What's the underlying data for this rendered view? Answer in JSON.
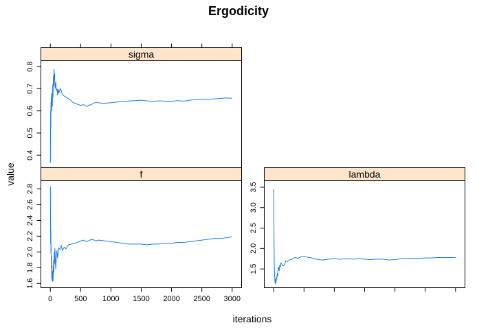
{
  "chart_data": {
    "type": "line",
    "title": "Ergodicity",
    "xlabel": "iterations",
    "ylabel": "value",
    "layout": "trellis 2x2, bottom-left start",
    "line_color": "#1f78e6",
    "strip_color": "#ffe5cc",
    "panels": [
      {
        "name": "sigma",
        "xlim": [
          -150,
          3150
        ],
        "ylim": [
          0.345,
          0.825
        ],
        "yticks": [
          "0.4",
          "0.5",
          "0.6",
          "0.7",
          "0.8"
        ],
        "ytick_values": [
          0.4,
          0.5,
          0.6,
          0.7,
          0.8
        ],
        "series": [
          {
            "x": [
              1,
              3,
              5,
              8,
              10,
              12,
              15,
              18,
              20,
              23,
              26,
              30,
              33,
              36,
              40,
              44,
              48,
              52,
              56,
              60,
              65,
              70,
              75,
              80,
              90,
              100,
              110,
              120,
              130,
              140,
              150,
              170,
              190,
              210,
              240,
              270,
              300,
              330,
              360,
              400,
              450,
              500,
              550,
              600,
              650,
              700,
              750,
              800,
              900,
              1000,
              1100,
              1200,
              1300,
              1400,
              1500,
              1600,
              1700,
              1800,
              1900,
              2000,
              2100,
              2200,
              2300,
              2400,
              2500,
              2600,
              2700,
              2800,
              2900,
              3000
            ],
            "y": [
              0.365,
              0.48,
              0.6,
              0.52,
              0.64,
              0.59,
              0.68,
              0.62,
              0.66,
              0.6,
              0.63,
              0.66,
              0.62,
              0.68,
              0.72,
              0.66,
              0.73,
              0.76,
              0.71,
              0.79,
              0.74,
              0.77,
              0.72,
              0.7,
              0.73,
              0.69,
              0.7,
              0.67,
              0.7,
              0.68,
              0.69,
              0.7,
              0.68,
              0.67,
              0.665,
              0.66,
              0.655,
              0.65,
              0.64,
              0.635,
              0.63,
              0.625,
              0.628,
              0.62,
              0.626,
              0.632,
              0.64,
              0.636,
              0.634,
              0.637,
              0.64,
              0.642,
              0.645,
              0.646,
              0.648,
              0.645,
              0.643,
              0.645,
              0.644,
              0.643,
              0.646,
              0.644,
              0.648,
              0.651,
              0.653,
              0.652,
              0.654,
              0.656,
              0.658,
              0.657
            ]
          }
        ]
      },
      {
        "name": "f",
        "xlim": [
          -150,
          3150
        ],
        "ylim": [
          1.55,
          2.9
        ],
        "xticks": [
          "0",
          "500",
          "1000",
          "1500",
          "2000",
          "2500",
          "3000"
        ],
        "xtick_values": [
          0,
          500,
          1000,
          1500,
          2000,
          2500,
          3000
        ],
        "yticks": [
          "1.6",
          "1.8",
          "2.0",
          "2.2",
          "2.4",
          "2.6",
          "2.8"
        ],
        "ytick_values": [
          1.6,
          1.8,
          2.0,
          2.2,
          2.4,
          2.6,
          2.8
        ],
        "series": [
          {
            "x": [
              1,
              3,
              5,
              8,
              10,
              13,
              16,
              20,
              24,
              28,
              32,
              36,
              40,
              45,
              50,
              55,
              60,
              65,
              70,
              75,
              80,
              90,
              100,
              110,
              120,
              140,
              160,
              180,
              200,
              230,
              260,
              300,
              350,
              400,
              450,
              500,
              550,
              600,
              650,
              700,
              750,
              800,
              900,
              1000,
              1100,
              1200,
              1300,
              1400,
              1500,
              1600,
              1700,
              1800,
              1900,
              2000,
              2100,
              2200,
              2300,
              2400,
              2500,
              2600,
              2700,
              2800,
              2900,
              3000
            ],
            "y": [
              2.83,
              2.4,
              2.1,
              2.28,
              1.98,
              2.1,
              1.8,
              1.95,
              1.65,
              1.82,
              1.62,
              1.76,
              1.7,
              1.63,
              1.78,
              1.9,
              1.74,
              2.0,
              1.85,
              2.05,
              1.95,
              1.78,
              1.95,
              2.02,
              1.92,
              2.05,
              2.03,
              2.08,
              2.02,
              2.06,
              2.04,
              2.09,
              2.1,
              2.11,
              2.12,
              2.14,
              2.15,
              2.13,
              2.15,
              2.16,
              2.14,
              2.15,
              2.14,
              2.13,
              2.12,
              2.11,
              2.1,
              2.1,
              2.1,
              2.09,
              2.1,
              2.1,
              2.11,
              2.11,
              2.12,
              2.12,
              2.13,
              2.14,
              2.15,
              2.16,
              2.17,
              2.17,
              2.18,
              2.19
            ]
          }
        ]
      },
      {
        "name": "lambda",
        "xlim": [
          -150,
          3150
        ],
        "ylim": [
          1.05,
          3.65
        ],
        "yticks": [
          "1.5",
          "2.0",
          "2.5",
          "3.0",
          "3.5"
        ],
        "ytick_values": [
          1.5,
          2.0,
          2.5,
          3.0,
          3.5
        ],
        "series": [
          {
            "x": [
              1,
              3,
              5,
              8,
              10,
              13,
              16,
              20,
              24,
              28,
              32,
              36,
              40,
              45,
              50,
              55,
              60,
              65,
              70,
              75,
              80,
              90,
              100,
              110,
              120,
              140,
              160,
              180,
              200,
              230,
              260,
              300,
              350,
              400,
              450,
              500,
              550,
              600,
              650,
              700,
              750,
              800,
              900,
              1000,
              1100,
              1200,
              1300,
              1400,
              1500,
              1600,
              1700,
              1800,
              1900,
              2000,
              2100,
              2200,
              2300,
              2400,
              2500,
              2600,
              2700,
              2800,
              2900,
              3000
            ],
            "y": [
              3.45,
              2.9,
              2.3,
              1.8,
              1.6,
              1.4,
              1.3,
              1.2,
              1.15,
              1.25,
              1.12,
              1.2,
              1.18,
              1.3,
              1.25,
              1.35,
              1.4,
              1.32,
              1.45,
              1.5,
              1.55,
              1.45,
              1.6,
              1.55,
              1.65,
              1.6,
              1.58,
              1.62,
              1.7,
              1.68,
              1.72,
              1.74,
              1.78,
              1.76,
              1.8,
              1.8,
              1.79,
              1.78,
              1.76,
              1.74,
              1.73,
              1.72,
              1.74,
              1.75,
              1.74,
              1.75,
              1.74,
              1.75,
              1.74,
              1.73,
              1.74,
              1.74,
              1.72,
              1.73,
              1.75,
              1.76,
              1.76,
              1.76,
              1.77,
              1.77,
              1.78,
              1.78,
              1.78,
              1.78
            ]
          }
        ]
      }
    ]
  }
}
